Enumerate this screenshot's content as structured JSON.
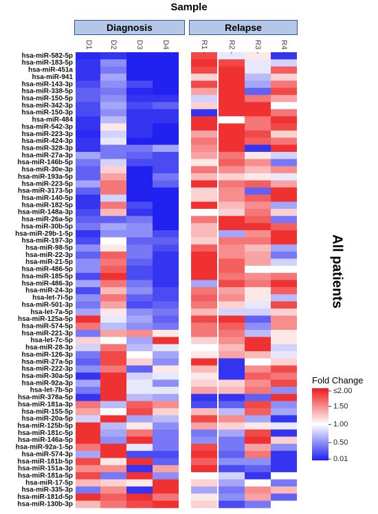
{
  "chart_data": {
    "type": "heatmap",
    "title": "Sample",
    "side_label": "All patients",
    "groups": [
      {
        "name": "Diagnosis",
        "columns": [
          "D1",
          "D2",
          "D3",
          "D4"
        ]
      },
      {
        "name": "Relapse",
        "columns": [
          "R1",
          "R2",
          "R3",
          "R4"
        ]
      }
    ],
    "columns": [
      "D1",
      "D2",
      "D3",
      "D4",
      "R1",
      "R2",
      "R3",
      "R4"
    ],
    "rows": [
      "hsa-miR-582-5p",
      "hsa-miR-183-5p",
      "hsa-miR-451a",
      "hsa-miR-941",
      "hsa-miR-143-3p",
      "hsa-miR-338-5p",
      "hsa-miR-150-5p",
      "hsa-miR-342-3p",
      "hsa-miR-150-3p",
      "hsa-miR-484",
      "hsa-miR-542-3p",
      "hsa-miR-223-3p",
      "hsa-miR-424-3p",
      "hsa-miR-328-3p",
      "hsa-miR-27a-3p",
      "hsa-miR-146b-5p",
      "hsa-miR-30e-3p",
      "hsa-miR-193a-5p",
      "hsa-miR-223-5p",
      "hsa-miR-3173-5p",
      "hsa-miR-140-5p",
      "hsa-miR-182-5p",
      "hsa-miR-148a-3p",
      "hsa-miR-26a-5p",
      "hsa-miR-30b-5p",
      "hsa-miR-29b-1-5p",
      "hsa-miR-197-3p",
      "hsa-miR-98-5p",
      "hsa-miR-22-3p",
      "hsa-miR-21-5p",
      "hsa-miR-486-5p",
      "hsa-miR-185-5p",
      "hsa-miR-486-3p",
      "hsa-miR-24-3p",
      "hsa-let-7i-5p",
      "hsa-miR-501-3p",
      "hsa-let-7a-5p",
      "hsa-miR-125a-5p",
      "hsa-miR-574-5p",
      "hsa-miR-221-3p",
      "hsa-let-7c-5p",
      "hsa-miR-28-3p",
      "hsa-miR-126-3p",
      "hsa-miR-27a-5p",
      "hsa-miR-222-3p",
      "hsa-miR-30a-5p",
      "hsa-miR-92a-3p",
      "hsa-let-7b-5p",
      "hsa-miR-378a-5p",
      "hsa-miR-181a-3p",
      "hsa-miR-155-5p",
      "hsa-miR-20a-5p",
      "hsa-miR-125b-5p",
      "hsa-miR-181c-5p",
      "hsa-miR-146a-5p",
      "hsa-miR-92a-1-5p",
      "hsa-miR-574-3p",
      "hsa-miR-181b-5p",
      "hsa-miR-151a-3p",
      "hsa-miR-181a-5p",
      "hsa-miR-17-5p",
      "hsa-miR-335-3p",
      "hsa-miR-181d-5p",
      "hsa-miR-130b-3p"
    ],
    "values": [
      [
        0.05,
        0.1,
        0.02,
        0.02,
        1.8,
        0.9,
        1.1,
        0.1
      ],
      [
        0.1,
        0.5,
        0.02,
        0.02,
        1.9,
        1.8,
        0.9,
        0.8
      ],
      [
        0.1,
        0.4,
        0.02,
        0.02,
        1.8,
        1.9,
        0.9,
        1.7
      ],
      [
        0.1,
        0.6,
        0.02,
        0.02,
        1.2,
        1.9,
        0.7,
        1.2
      ],
      [
        0.2,
        0.5,
        0.2,
        0.02,
        1.8,
        1.9,
        0.6,
        1.6
      ],
      [
        0.3,
        0.4,
        0.05,
        0.02,
        1.4,
        1.9,
        0.3,
        1.8
      ],
      [
        0.3,
        0.5,
        0.1,
        0.1,
        0.8,
        1.9,
        1.6,
        1.4
      ],
      [
        0.2,
        0.6,
        0.2,
        0.3,
        1.2,
        1.9,
        1.9,
        1.0
      ],
      [
        0.2,
        0.5,
        0.1,
        0.1,
        0.1,
        1.9,
        1.9,
        1.6
      ],
      [
        0.1,
        0.7,
        0.1,
        0.1,
        1.9,
        1.0,
        1.6,
        1.9
      ],
      [
        0.1,
        1.1,
        0.1,
        0.02,
        1.9,
        1.9,
        1.6,
        1.8
      ],
      [
        0.05,
        0.8,
        0.1,
        0.02,
        1.4,
        1.9,
        1.8,
        1.2
      ],
      [
        0.1,
        0.9,
        0.02,
        0.02,
        1.6,
        1.9,
        1.7,
        1.6
      ],
      [
        0.1,
        0.4,
        0.4,
        0.6,
        1.5,
        1.9,
        0.1,
        1.9
      ],
      [
        0.6,
        0.4,
        0.3,
        0.2,
        1.4,
        1.6,
        1.1,
        0.8
      ],
      [
        0.4,
        0.8,
        0.2,
        0.2,
        1.1,
        1.7,
        1.5,
        0.4
      ],
      [
        0.3,
        1.2,
        0.02,
        0.2,
        1.6,
        1.5,
        1.3,
        1.5
      ],
      [
        0.3,
        1.4,
        0.02,
        0.4,
        1.3,
        1.2,
        1.1,
        0.9
      ],
      [
        0.6,
        1.6,
        0.02,
        0.3,
        1.9,
        1.6,
        1.7,
        1.4
      ],
      [
        0.3,
        1.6,
        0.02,
        0.02,
        1.2,
        1.5,
        0.3,
        1.9
      ],
      [
        0.1,
        0.8,
        0.02,
        0.02,
        1.2,
        1.5,
        1.7,
        1.9
      ],
      [
        0.1,
        1.6,
        0.2,
        0.02,
        1.9,
        1.3,
        1.5,
        0.6
      ],
      [
        0.2,
        1.3,
        0.1,
        0.02,
        1.0,
        1.2,
        1.6,
        1.2
      ],
      [
        0.3,
        0.3,
        0.4,
        0.02,
        1.6,
        1.9,
        1.7,
        0.4
      ],
      [
        0.4,
        0.6,
        0.5,
        0.02,
        1.3,
        1.9,
        1.9,
        1.7
      ],
      [
        0.1,
        0.5,
        0.5,
        0.2,
        1.3,
        0.6,
        1.5,
        1.9
      ],
      [
        0.2,
        1.0,
        0.3,
        0.3,
        1.2,
        1.6,
        1.6,
        1.9
      ],
      [
        0.5,
        1.1,
        0.4,
        0.2,
        1.7,
        1.5,
        1.3,
        0.6
      ],
      [
        0.3,
        1.7,
        0.4,
        0.1,
        1.9,
        1.5,
        1.4,
        0.4
      ],
      [
        0.5,
        1.6,
        0.3,
        0.1,
        1.9,
        1.7,
        1.4,
        0.8
      ],
      [
        0.5,
        1.7,
        0.2,
        0.1,
        1.9,
        1.7,
        1.0,
        1.0
      ],
      [
        0.2,
        1.9,
        0.2,
        0.1,
        1.9,
        1.6,
        1.5,
        1.6
      ],
      [
        0.6,
        1.6,
        0.4,
        0.1,
        0.6,
        1.8,
        1.6,
        1.9
      ],
      [
        0.2,
        1.3,
        0.5,
        0.2,
        1.6,
        1.4,
        1.1,
        1.7
      ],
      [
        0.5,
        1.6,
        0.3,
        0.2,
        1.7,
        1.5,
        1.1,
        0.7
      ],
      [
        0.4,
        1.4,
        0.2,
        0.3,
        1.6,
        1.2,
        0.9,
        1.8
      ],
      [
        0.6,
        1.1,
        0.5,
        0.4,
        1.3,
        0.8,
        0.8,
        1.2
      ],
      [
        1.9,
        0.9,
        0.6,
        0.3,
        1.8,
        1.9,
        0.3,
        1.5
      ],
      [
        1.6,
        0.7,
        0.5,
        0.4,
        1.6,
        1.7,
        0.5,
        1.5
      ],
      [
        0.4,
        1.4,
        1.5,
        1.1,
        1.6,
        1.6,
        0.7,
        1.1
      ],
      [
        1.2,
        1.0,
        0.6,
        1.9,
        1.2,
        1.5,
        1.9,
        1.1
      ],
      [
        0.8,
        1.6,
        0.7,
        0.9,
        1.0,
        1.3,
        1.9,
        0.8
      ],
      [
        0.4,
        1.8,
        1.0,
        0.6,
        1.1,
        1.4,
        1.3,
        0.9
      ],
      [
        0.3,
        1.8,
        1.2,
        0.5,
        1.9,
        0.1,
        1.0,
        1.2
      ],
      [
        0.5,
        1.6,
        0.3,
        1.1,
        1.3,
        0.1,
        1.5,
        1.8
      ],
      [
        0.1,
        1.9,
        0.8,
        0.9,
        1.1,
        0.1,
        1.7,
        1.6
      ],
      [
        0.6,
        1.9,
        0.9,
        0.5,
        1.2,
        1.2,
        1.5,
        1.8
      ],
      [
        0.4,
        1.9,
        0.9,
        0.9,
        1.4,
        1.3,
        1.6,
        0.5
      ],
      [
        0.1,
        1.9,
        0.7,
        0.6,
        0.1,
        0.1,
        0.3,
        1.9
      ],
      [
        1.6,
        0.7,
        1.7,
        1.5,
        0.2,
        0.3,
        1.8,
        0.5
      ],
      [
        1.4,
        1.0,
        1.8,
        1.2,
        1.3,
        0.7,
        1.7,
        0.6
      ],
      [
        0.8,
        1.9,
        0.6,
        0.7,
        1.8,
        1.5,
        0.6,
        0.1
      ],
      [
        1.9,
        0.7,
        1.1,
        0.5,
        1.4,
        1.2,
        1.1,
        0.9
      ],
      [
        1.9,
        0.6,
        1.6,
        0.4,
        0.4,
        0.6,
        1.8,
        0.1
      ],
      [
        1.9,
        0.5,
        1.9,
        0.4,
        0.5,
        0.4,
        1.9,
        1.2
      ],
      [
        1.6,
        1.9,
        0.9,
        0.4,
        1.8,
        0.4,
        1.4,
        0.5
      ],
      [
        0.6,
        1.9,
        0.2,
        0.2,
        1.9,
        0.3,
        1.6,
        0.1
      ],
      [
        1.8,
        1.1,
        1.9,
        0.3,
        1.7,
        0.5,
        0.5,
        0.1
      ],
      [
        1.5,
        1.5,
        0.1,
        1.4,
        1.9,
        0.2,
        0.3,
        0.1
      ],
      [
        1.8,
        0.4,
        1.9,
        0.5,
        1.0,
        0.8,
        0.1,
        1.0
      ],
      [
        1.3,
        1.2,
        1.1,
        1.9,
        1.2,
        0.6,
        1.0,
        0.4
      ],
      [
        0.4,
        1.5,
        0.1,
        1.9,
        0.6,
        0.4,
        1.5,
        1.3
      ],
      [
        1.9,
        1.7,
        1.9,
        1.6,
        1.1,
        0.5,
        1.4,
        0.3
      ],
      [
        1.3,
        1.6,
        1.8,
        1.9,
        1.2,
        0.2,
        0.4,
        1.0
      ]
    ],
    "legend": {
      "title": "Fold Change",
      "ticks": [
        "≤2.00",
        "1.50",
        "1.00",
        "0.50",
        "0.01"
      ],
      "tick_values": [
        2.0,
        1.5,
        1.0,
        0.5,
        0.01
      ],
      "colors": {
        "low": "#2020f0",
        "mid": "#ffffff",
        "high": "#ee1a1a"
      },
      "placement": "bottom-right"
    }
  }
}
